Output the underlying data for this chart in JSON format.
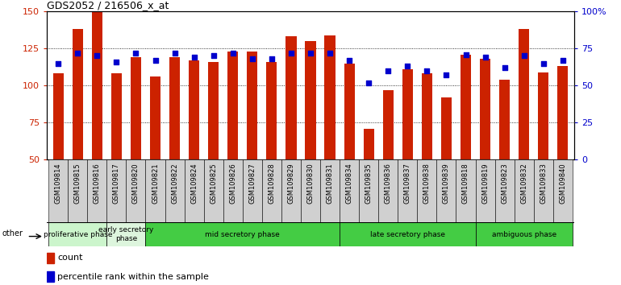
{
  "title": "GDS2052 / 216506_x_at",
  "samples": [
    "GSM109814",
    "GSM109815",
    "GSM109816",
    "GSM109817",
    "GSM109820",
    "GSM109821",
    "GSM109822",
    "GSM109824",
    "GSM109825",
    "GSM109826",
    "GSM109827",
    "GSM109828",
    "GSM109829",
    "GSM109830",
    "GSM109831",
    "GSM109834",
    "GSM109835",
    "GSM109836",
    "GSM109837",
    "GSM109838",
    "GSM109839",
    "GSM109818",
    "GSM109819",
    "GSM109823",
    "GSM109832",
    "GSM109833",
    "GSM109840"
  ],
  "count_values": [
    108,
    138,
    150,
    108,
    119,
    106,
    119,
    117,
    116,
    123,
    123,
    116,
    133,
    130,
    134,
    115,
    71,
    97,
    111,
    108,
    92,
    121,
    118,
    104,
    138,
    109,
    113
  ],
  "percentile_values": [
    65,
    72,
    70,
    66,
    72,
    67,
    72,
    69,
    70,
    72,
    68,
    68,
    72,
    72,
    72,
    67,
    52,
    60,
    63,
    60,
    57,
    71,
    69,
    62,
    70,
    65,
    67
  ],
  "phase_defs": [
    {
      "name": "proliferative phase",
      "start": 0,
      "end": 3,
      "color": "#ccf5cc"
    },
    {
      "name": "early secretory\nphase",
      "start": 3,
      "end": 5,
      "color": "#ddf5dd"
    },
    {
      "name": "mid secretory phase",
      "start": 5,
      "end": 15,
      "color": "#44cc44"
    },
    {
      "name": "late secretory phase",
      "start": 15,
      "end": 22,
      "color": "#44cc44"
    },
    {
      "name": "ambiguous phase",
      "start": 22,
      "end": 27,
      "color": "#44cc44"
    }
  ],
  "ylim_left": [
    50,
    150
  ],
  "ylim_right": [
    0,
    100
  ],
  "yticks_left": [
    50,
    75,
    100,
    125,
    150
  ],
  "yticks_right": [
    0,
    25,
    50,
    75,
    100
  ],
  "bar_color": "#cc2200",
  "dot_color": "#0000cc",
  "tick_bg": "#d0d0d0",
  "plot_bg": "#ffffff"
}
